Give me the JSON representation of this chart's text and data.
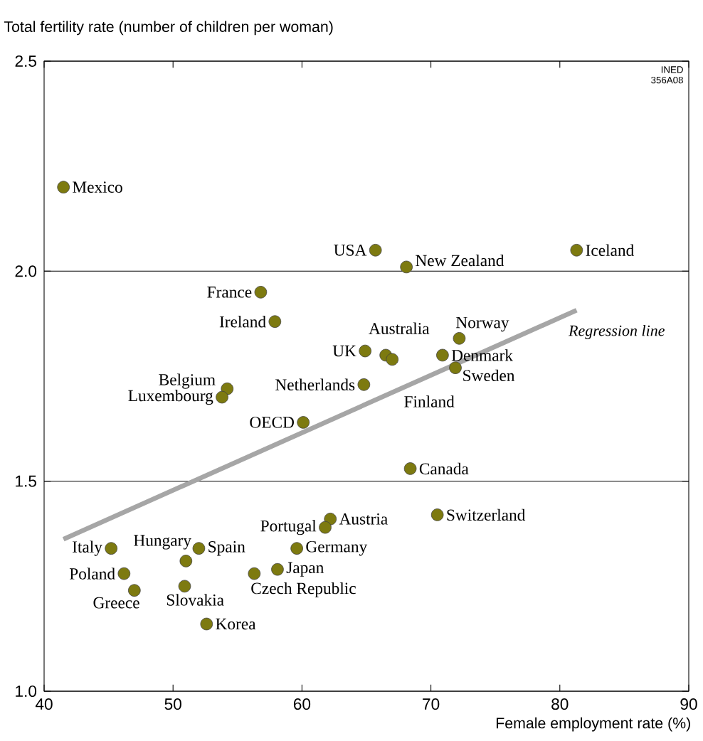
{
  "chart_data": {
    "type": "scatter",
    "xlabel": "Female employment rate (%)",
    "ylabel": "Total fertility rate (number of children per woman)",
    "xlim": [
      40,
      90
    ],
    "ylim": [
      1.0,
      2.5
    ],
    "xticks": [
      40,
      50,
      60,
      70,
      80,
      90
    ],
    "yticks": [
      {
        "value": 1.0,
        "label": "1.0"
      },
      {
        "value": 1.5,
        "label": "1.5"
      },
      {
        "value": 2.0,
        "label": "2.0"
      },
      {
        "value": 2.5,
        "label": "2.5"
      }
    ],
    "grid": "y",
    "legend": false,
    "series": [
      {
        "marker": "circle",
        "color": "#7d7a10",
        "x": [
          41.5,
          65.7,
          68.1,
          81.3,
          56.8,
          57.9,
          72.2,
          64.9,
          66.5,
          67.0,
          70.9,
          71.9,
          54.2,
          53.8,
          64.8,
          60.1,
          68.4,
          70.5,
          62.2,
          61.8,
          45.2,
          51.0,
          52.0,
          59.6,
          58.1,
          56.3,
          46.2,
          47.0,
          50.9,
          52.6
        ],
        "values": [
          2.2,
          2.05,
          2.01,
          2.05,
          1.95,
          1.88,
          1.84,
          1.81,
          1.8,
          1.79,
          1.8,
          1.77,
          1.72,
          1.7,
          1.73,
          1.64,
          1.53,
          1.42,
          1.41,
          1.39,
          1.34,
          1.31,
          1.34,
          1.34,
          1.29,
          1.28,
          1.28,
          1.24,
          1.25,
          1.16
        ]
      },
      {
        "type": "line",
        "name": "Regression line",
        "color": "#a6a6a6",
        "x": [
          41.5,
          81.3
        ],
        "values": [
          1.362,
          1.907
        ]
      }
    ],
    "annotations": [
      {
        "text": "Mexico",
        "x": 41.5,
        "y": 2.2
      },
      {
        "text": "USA",
        "x": 65.7,
        "y": 2.05
      },
      {
        "text": "New Zealand",
        "x": 68.1,
        "y": 2.01
      },
      {
        "text": "Iceland",
        "x": 81.3,
        "y": 2.05
      },
      {
        "text": "France",
        "x": 56.8,
        "y": 1.95
      },
      {
        "text": "Ireland",
        "x": 57.9,
        "y": 1.88
      },
      {
        "text": "Norway",
        "x": 72.2,
        "y": 1.84
      },
      {
        "text": "UK",
        "x": 64.9,
        "y": 1.81
      },
      {
        "text": "Australia",
        "x": 66.5,
        "y": 1.8
      },
      {
        "text": "Finland",
        "x": 67.0,
        "y": 1.79
      },
      {
        "text": "Denmark",
        "x": 70.9,
        "y": 1.8
      },
      {
        "text": "Sweden",
        "x": 71.9,
        "y": 1.77
      },
      {
        "text": "Belgium",
        "x": 54.2,
        "y": 1.72
      },
      {
        "text": "Luxembourg",
        "x": 53.8,
        "y": 1.7
      },
      {
        "text": "Netherlands",
        "x": 64.8,
        "y": 1.73
      },
      {
        "text": "OECD",
        "x": 60.1,
        "y": 1.64
      },
      {
        "text": "Canada",
        "x": 68.4,
        "y": 1.53
      },
      {
        "text": "Switzerland",
        "x": 70.5,
        "y": 1.42
      },
      {
        "text": "Austria",
        "x": 62.2,
        "y": 1.41
      },
      {
        "text": "Portugal",
        "x": 61.8,
        "y": 1.39
      },
      {
        "text": "Italy",
        "x": 45.2,
        "y": 1.34
      },
      {
        "text": "Hungary",
        "x": 51.0,
        "y": 1.31
      },
      {
        "text": "Spain",
        "x": 52.0,
        "y": 1.34
      },
      {
        "text": "Germany",
        "x": 59.6,
        "y": 1.34
      },
      {
        "text": "Japan",
        "x": 58.1,
        "y": 1.29
      },
      {
        "text": "Czech Republic",
        "x": 56.3,
        "y": 1.28
      },
      {
        "text": "Poland",
        "x": 46.2,
        "y": 1.28
      },
      {
        "text": "Greece",
        "x": 47.0,
        "y": 1.24
      },
      {
        "text": "Slovakia",
        "x": 50.9,
        "y": 1.25
      },
      {
        "text": "Korea",
        "x": 52.6,
        "y": 1.16
      },
      "INED 356A08"
    ]
  }
}
